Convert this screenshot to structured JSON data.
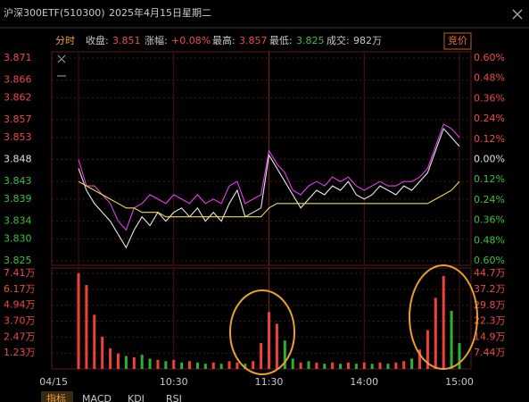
{
  "header": {
    "title": "沪深300ETF(510300)",
    "date": "2025年4月15日",
    "weekday": "星期二"
  },
  "info": {
    "mode": "分时",
    "close_label": "收盘:",
    "close": "3.851",
    "change_label": "涨幅:",
    "change": "+0.08%",
    "high_label": "最高:",
    "high": "3.857",
    "low_label": "最低:",
    "low": "3.825",
    "volume_label": "成交:",
    "volume": "982万"
  },
  "button": "竞价",
  "tabs": [
    "指标",
    "MACD",
    "KDJ",
    "RSI"
  ],
  "chart_data": [
    {
      "type": "line",
      "x": [
        0,
        5,
        10,
        15,
        20,
        25,
        30,
        35,
        40,
        45,
        50,
        55,
        60,
        65,
        70,
        75,
        80,
        85,
        90,
        95,
        100,
        105,
        110,
        115,
        120,
        125,
        130,
        135,
        140,
        145,
        150,
        155,
        160,
        165,
        170,
        175,
        180,
        185,
        190,
        195,
        200,
        205,
        210,
        215,
        220,
        225,
        230,
        235,
        240
      ],
      "xlim": [
        0,
        240
      ],
      "ylim": [
        3.825,
        3.871
      ],
      "yticks": [
        3.825,
        {
          "value": 3.83,
          "label": "3.830"
        },
        3.834,
        3.839,
        3.843,
        3.848,
        3.853,
        3.857,
        3.862,
        3.866,
        3.871
      ],
      "y2lim": [
        -0.6,
        0.6
      ],
      "y2ticks": [
        {
          "value": -0.6,
          "label": "0.60%"
        },
        {
          "value": -0.48,
          "label": "0.48%"
        },
        {
          "value": -0.36,
          "label": "0.36%"
        },
        {
          "value": -0.24,
          "label": "0.24%"
        },
        {
          "value": -0.12,
          "label": "0.12%"
        },
        {
          "value": 0,
          "label": "0.00%"
        },
        {
          "value": 0.12,
          "label": "0.12%"
        },
        {
          "value": 0.24,
          "label": "0.24%"
        },
        {
          "value": 0.36,
          "label": "0.36%"
        },
        {
          "value": 0.48,
          "label": "0.48%"
        },
        {
          "value": 0.6,
          "label": "0.60%"
        }
      ],
      "grid": true,
      "series": [
        {
          "color": "#e8e8e8",
          "values": [
            3.846,
            3.841,
            3.838,
            3.836,
            3.834,
            3.831,
            3.828,
            3.832,
            3.835,
            3.833,
            3.836,
            3.834,
            3.836,
            3.837,
            3.835,
            3.837,
            3.834,
            3.836,
            3.834,
            3.838,
            3.841,
            3.835,
            3.836,
            3.837,
            3.849,
            3.846,
            3.843,
            3.84,
            3.837,
            3.839,
            3.841,
            3.84,
            3.842,
            3.841,
            3.843,
            3.84,
            3.839,
            3.84,
            3.842,
            3.841,
            3.84,
            3.842,
            3.841,
            3.843,
            3.845,
            3.85,
            3.855,
            3.853,
            3.851
          ]
        },
        {
          "color": "#e040e8",
          "values": [
            3.848,
            3.842,
            3.842,
            3.84,
            3.838,
            3.834,
            3.832,
            3.837,
            3.838,
            3.84,
            3.839,
            3.838,
            3.84,
            3.839,
            3.838,
            3.84,
            3.838,
            3.839,
            3.838,
            3.842,
            3.843,
            3.838,
            3.839,
            3.84,
            3.85,
            3.847,
            3.845,
            3.841,
            3.84,
            3.842,
            3.843,
            3.842,
            3.844,
            3.843,
            3.844,
            3.842,
            3.841,
            3.842,
            3.843,
            3.842,
            3.842,
            3.843,
            3.843,
            3.844,
            3.846,
            3.851,
            3.856,
            3.855,
            3.853
          ]
        },
        {
          "color": "#e8e040",
          "values": [
            3.843,
            3.842,
            3.841,
            3.84,
            3.839,
            3.838,
            3.837,
            3.837,
            3.836,
            3.836,
            3.836,
            3.835,
            3.835,
            3.835,
            3.835,
            3.835,
            3.835,
            3.835,
            3.835,
            3.835,
            3.835,
            3.835,
            3.835,
            3.835,
            3.837,
            3.838,
            3.838,
            3.838,
            3.838,
            3.838,
            3.838,
            3.838,
            3.838,
            3.838,
            3.838,
            3.838,
            3.838,
            3.838,
            3.838,
            3.838,
            3.838,
            3.838,
            3.838,
            3.838,
            3.838,
            3.839,
            3.84,
            3.841,
            3.843
          ]
        }
      ]
    },
    {
      "type": "bar",
      "x": [
        0,
        5,
        10,
        15,
        20,
        25,
        30,
        35,
        40,
        45,
        50,
        55,
        60,
        65,
        70,
        75,
        80,
        85,
        90,
        95,
        100,
        105,
        110,
        115,
        120,
        125,
        130,
        135,
        140,
        145,
        150,
        155,
        160,
        165,
        170,
        175,
        180,
        185,
        190,
        195,
        200,
        205,
        210,
        215,
        220,
        225,
        230,
        235,
        240
      ],
      "xlim": [
        0,
        240
      ],
      "xticks": [
        {
          "value": 0,
          "label": "04/15"
        },
        {
          "value": 60,
          "label": "10:30"
        },
        {
          "value": 120,
          "label": "11:30"
        },
        {
          "value": 180,
          "label": "14:00"
        },
        {
          "value": 240,
          "label": "15:00"
        }
      ],
      "ylim": [
        0,
        7.82
      ],
      "yticks": [
        {
          "value": 1.23,
          "label": "1.23万"
        },
        {
          "value": 2.47,
          "label": "2.47万"
        },
        {
          "value": 3.7,
          "label": "3.70万"
        },
        {
          "value": 4.94,
          "label": "4.94万"
        },
        {
          "value": 6.17,
          "label": "6.17万"
        },
        {
          "value": 7.41,
          "label": "7.41万"
        }
      ],
      "y2lim": [
        0,
        47.3
      ],
      "y2ticks": [
        {
          "value": 7.44,
          "label": "7.44万"
        },
        {
          "value": 14.9,
          "label": "14.9万"
        },
        {
          "value": 22.3,
          "label": "22.3万"
        },
        {
          "value": 29.8,
          "label": "29.8万"
        },
        {
          "value": 37.2,
          "label": "37.2万"
        },
        {
          "value": 44.7,
          "label": "44.7万"
        }
      ],
      "grid": true,
      "values": [
        7.41,
        6.5,
        4.2,
        2.5,
        1.6,
        1.2,
        1.0,
        0.9,
        1.1,
        0.8,
        0.7,
        0.6,
        0.7,
        0.5,
        0.6,
        0.5,
        0.4,
        0.5,
        0.4,
        0.6,
        0.5,
        0.4,
        0.6,
        2.0,
        4.4,
        3.5,
        2.2,
        0.8,
        0.5,
        0.6,
        0.5,
        0.4,
        0.5,
        0.4,
        0.5,
        0.4,
        0.5,
        0.4,
        0.5,
        0.4,
        0.5,
        0.6,
        0.8,
        1.5,
        3.0,
        5.5,
        7.2,
        4.5,
        2.0
      ],
      "colors": [
        "#f0403c",
        "#f0403c",
        "#f0403c",
        "#f0403c",
        "#f0403c",
        "#f0403c",
        "#30b030",
        "#f0403c",
        "#30b030",
        "#30b030",
        "#f0403c",
        "#30b030",
        "#f0403c",
        "#30b030",
        "#f0403c",
        "#30b030",
        "#30b030",
        "#f0403c",
        "#30b030",
        "#f0403c",
        "#f0403c",
        "#30b030",
        "#f0403c",
        "#f0403c",
        "#f0403c",
        "#f0403c",
        "#30b030",
        "#30b030",
        "#f0403c",
        "#30b030",
        "#f0403c",
        "#30b030",
        "#f0403c",
        "#30b030",
        "#f0403c",
        "#30b030",
        "#f0403c",
        "#30b030",
        "#f0403c",
        "#30b030",
        "#f0403c",
        "#f0403c",
        "#30b030",
        "#f0403c",
        "#f0403c",
        "#f0403c",
        "#f0403c",
        "#30b030",
        "#30b030"
      ]
    }
  ]
}
